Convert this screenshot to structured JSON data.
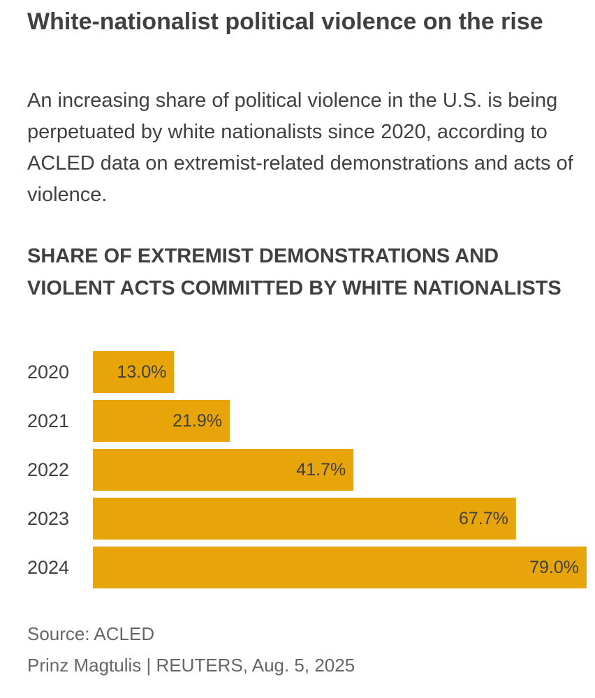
{
  "headline": "White-nationalist political violence on the rise",
  "dek": "An increasing share of political violence in the U.S. is being perpetuated by white nationalists since 2020, according to ACLED data on extremist-related demonstrations and acts of violence.",
  "chart_data": {
    "type": "bar",
    "orientation": "horizontal",
    "title": "SHARE OF EXTREMIST DEMONSTRATIONS AND VIOLENT ACTS COMMITTED BY WHITE NATIONALISTS",
    "categories": [
      "2020",
      "2021",
      "2022",
      "2023",
      "2024"
    ],
    "values": [
      13.0,
      21.9,
      41.7,
      67.7,
      79.0
    ],
    "value_labels": [
      "13.0%",
      "21.9%",
      "41.7%",
      "67.7%",
      "79.0%"
    ],
    "xlabel": "",
    "ylabel": "",
    "xlim": [
      0,
      79.0
    ],
    "grid": false,
    "legend": "none",
    "bar_color": "#E8A50A"
  },
  "source": "Source: ACLED",
  "credit": "Prinz Magtulis | REUTERS, Aug. 5, 2025"
}
